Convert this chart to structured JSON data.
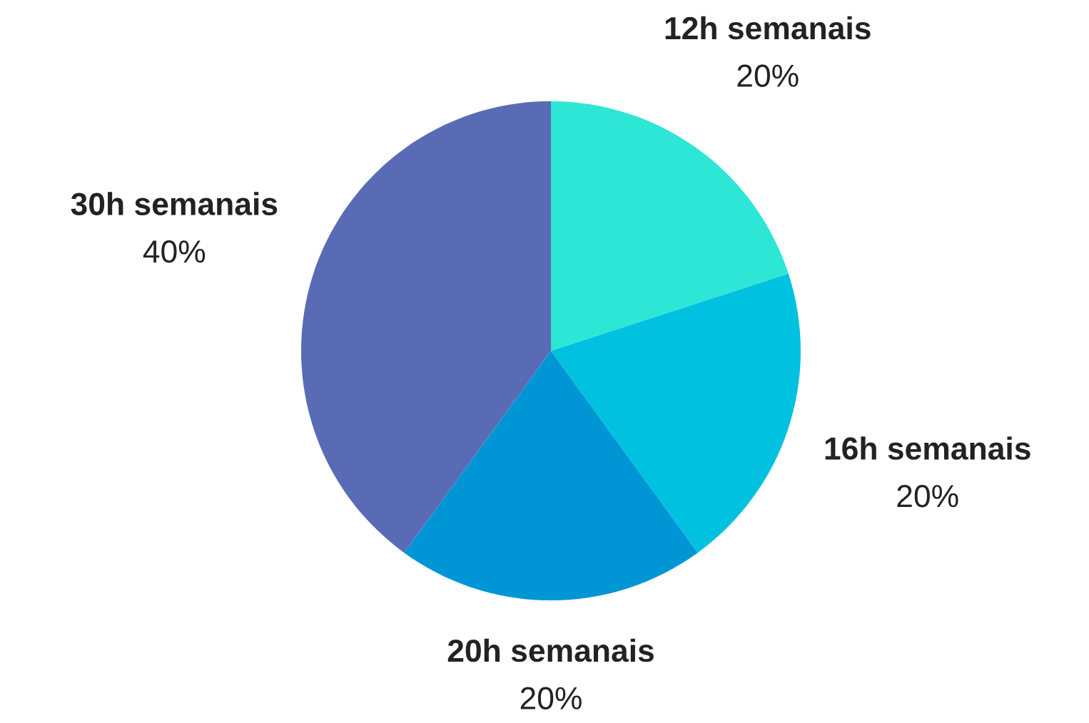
{
  "chart_data": {
    "type": "pie",
    "categories": [
      "12h semanais",
      "16h semanais",
      "20h semanais",
      "30h semanais"
    ],
    "values": [
      20,
      20,
      20,
      40
    ],
    "value_labels": [
      "20%",
      "20%",
      "20%",
      "40%"
    ],
    "colors": [
      "#2ee6d6",
      "#00c2e0",
      "#0096d6",
      "#596bb5"
    ]
  }
}
